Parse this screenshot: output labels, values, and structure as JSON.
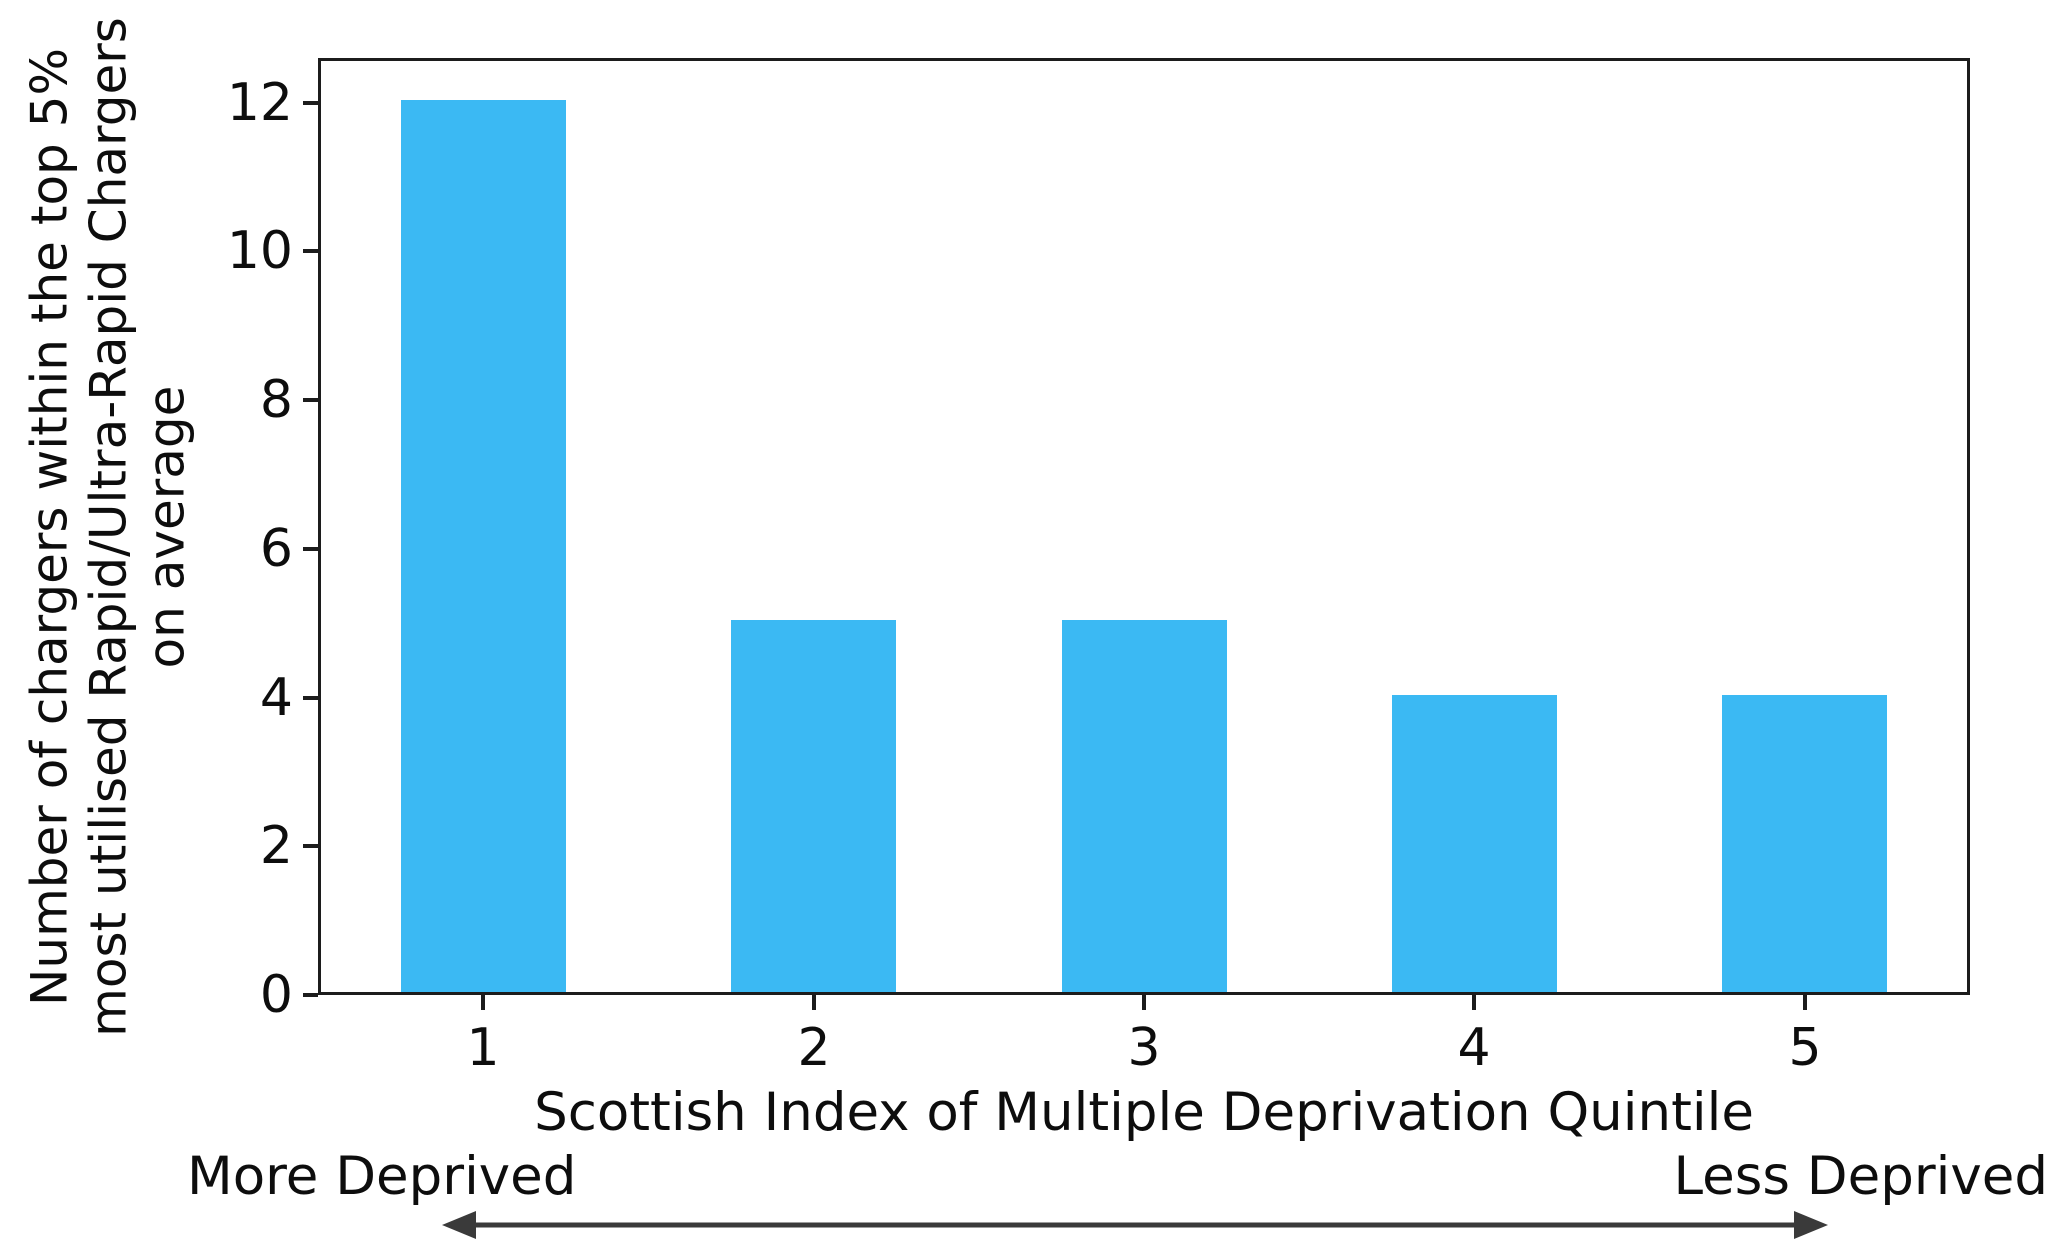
{
  "chart_data": {
    "type": "bar",
    "categories": [
      "1",
      "2",
      "3",
      "4",
      "5"
    ],
    "values": [
      12,
      5,
      5,
      4,
      4
    ],
    "title": "",
    "xlabel": "Scottish Index of Multiple Deprivation Quintile",
    "ylabel": "Number of chargers within the top 5%\nmost utilised Rapid/Ultra-Rapid Chargers\non average",
    "yticks": [
      0,
      2,
      4,
      6,
      8,
      10,
      12
    ],
    "ylim": [
      0,
      12.6
    ],
    "grid": false,
    "legend": "none",
    "bar_color": "#3bb9f3",
    "axis_color": "#1c1c1c",
    "annotations": {
      "left": "More Deprived",
      "right": "Less Deprived",
      "arrow": "double-headed-horizontal"
    }
  }
}
